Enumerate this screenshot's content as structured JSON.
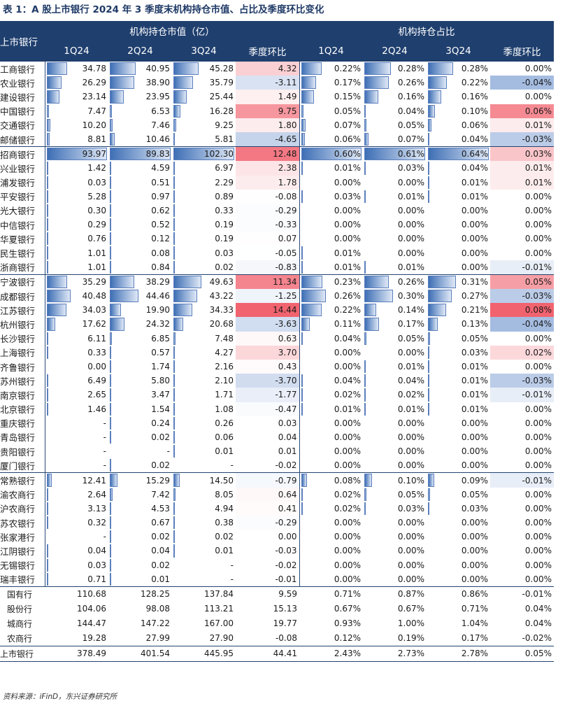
{
  "title": "表 1：A 股上市银行 2024 年 3 季度末机构持仓市值、占比及季度环比变化",
  "source": "资料来源：iFinD，东兴证券研究所",
  "header": {
    "row_label": "上市银行",
    "group_value": "机构持仓市值（亿）",
    "group_ratio": "机构持仓占比",
    "cols": [
      "1Q24",
      "2Q24",
      "3Q24",
      "季度环比",
      "1Q24",
      "2Q24",
      "3Q24",
      "季度环比"
    ]
  },
  "colors": {
    "header_bg": "#1f3f6e",
    "bar": "#3e6fb5",
    "neg": "#4a78c2",
    "pos": "#f1636f"
  },
  "rows": [
    {
      "name": "工商银行",
      "mv": [
        "34.78",
        "40.95",
        "45.28",
        "4.32"
      ],
      "r": [
        "0.22%",
        "0.28%",
        "0.28%",
        "0.00%"
      ]
    },
    {
      "name": "农业银行",
      "mv": [
        "26.29",
        "38.90",
        "35.79",
        "-3.11"
      ],
      "r": [
        "0.17%",
        "0.26%",
        "0.22%",
        "-0.04%"
      ]
    },
    {
      "name": "建设银行",
      "mv": [
        "23.14",
        "23.95",
        "25.44",
        "1.49"
      ],
      "r": [
        "0.15%",
        "0.16%",
        "0.16%",
        "0.00%"
      ]
    },
    {
      "name": "中国银行",
      "mv": [
        "7.47",
        "6.53",
        "16.28",
        "9.75"
      ],
      "r": [
        "0.05%",
        "0.04%",
        "0.10%",
        "0.06%"
      ]
    },
    {
      "name": "交通银行",
      "mv": [
        "10.20",
        "7.46",
        "9.25",
        "1.80"
      ],
      "r": [
        "0.07%",
        "0.05%",
        "0.06%",
        "0.01%"
      ]
    },
    {
      "name": "邮储银行",
      "mv": [
        "8.81",
        "10.46",
        "5.81",
        "-4.65"
      ],
      "r": [
        "0.06%",
        "0.07%",
        "0.04%",
        "-0.03%"
      ]
    },
    {
      "name": "招商银行",
      "mv": [
        "93.97",
        "89.83",
        "102.30",
        "12.48"
      ],
      "r": [
        "0.60%",
        "0.61%",
        "0.64%",
        "0.03%"
      ],
      "group": true
    },
    {
      "name": "兴业银行",
      "mv": [
        "1.42",
        "4.59",
        "6.97",
        "2.38"
      ],
      "r": [
        "0.01%",
        "0.03%",
        "0.04%",
        "0.01%"
      ]
    },
    {
      "name": "浦发银行",
      "mv": [
        "0.03",
        "0.51",
        "2.29",
        "1.78"
      ],
      "r": [
        "0.00%",
        "0.00%",
        "0.01%",
        "0.01%"
      ]
    },
    {
      "name": "平安银行",
      "mv": [
        "5.28",
        "0.97",
        "0.89",
        "-0.08"
      ],
      "r": [
        "0.03%",
        "0.01%",
        "0.01%",
        "0.00%"
      ]
    },
    {
      "name": "光大银行",
      "mv": [
        "0.30",
        "0.62",
        "0.33",
        "-0.29"
      ],
      "r": [
        "0.00%",
        "0.00%",
        "0.00%",
        "0.00%"
      ]
    },
    {
      "name": "中信银行",
      "mv": [
        "0.29",
        "0.52",
        "0.19",
        "-0.33"
      ],
      "r": [
        "0.00%",
        "0.00%",
        "0.00%",
        "0.00%"
      ]
    },
    {
      "name": "华夏银行",
      "mv": [
        "0.76",
        "0.12",
        "0.19",
        "0.07"
      ],
      "r": [
        "0.00%",
        "0.00%",
        "0.00%",
        "0.00%"
      ]
    },
    {
      "name": "民生银行",
      "mv": [
        "1.01",
        "0.08",
        "0.03",
        "-0.05"
      ],
      "r": [
        "0.01%",
        "0.00%",
        "0.00%",
        "0.00%"
      ]
    },
    {
      "name": "浙商银行",
      "mv": [
        "1.01",
        "0.84",
        "0.02",
        "-0.83"
      ],
      "r": [
        "0.01%",
        "0.01%",
        "0.00%",
        "-0.01%"
      ]
    },
    {
      "name": "宁波银行",
      "mv": [
        "35.29",
        "38.29",
        "49.63",
        "11.34"
      ],
      "r": [
        "0.23%",
        "0.26%",
        "0.31%",
        "0.05%"
      ],
      "group": true
    },
    {
      "name": "成都银行",
      "mv": [
        "40.48",
        "44.46",
        "43.22",
        "-1.25"
      ],
      "r": [
        "0.26%",
        "0.30%",
        "0.27%",
        "-0.03%"
      ]
    },
    {
      "name": "江苏银行",
      "mv": [
        "34.03",
        "19.90",
        "34.33",
        "14.44"
      ],
      "r": [
        "0.22%",
        "0.14%",
        "0.21%",
        "0.08%"
      ]
    },
    {
      "name": "杭州银行",
      "mv": [
        "17.62",
        "24.32",
        "20.68",
        "-3.63"
      ],
      "r": [
        "0.11%",
        "0.17%",
        "0.13%",
        "-0.04%"
      ]
    },
    {
      "name": "长沙银行",
      "mv": [
        "6.11",
        "6.85",
        "7.48",
        "0.63"
      ],
      "r": [
        "0.04%",
        "0.05%",
        "0.05%",
        "0.00%"
      ]
    },
    {
      "name": "上海银行",
      "mv": [
        "0.33",
        "0.57",
        "4.27",
        "3.70"
      ],
      "r": [
        "0.00%",
        "0.00%",
        "0.03%",
        "0.02%"
      ]
    },
    {
      "name": "齐鲁银行",
      "mv": [
        "0.00",
        "1.74",
        "2.16",
        "0.43"
      ],
      "r": [
        "0.00%",
        "0.01%",
        "0.01%",
        "0.00%"
      ]
    },
    {
      "name": "苏州银行",
      "mv": [
        "6.49",
        "5.80",
        "2.10",
        "-3.70"
      ],
      "r": [
        "0.04%",
        "0.04%",
        "0.01%",
        "-0.03%"
      ]
    },
    {
      "name": "南京银行",
      "mv": [
        "2.65",
        "3.47",
        "1.71",
        "-1.77"
      ],
      "r": [
        "0.02%",
        "0.02%",
        "0.01%",
        "-0.01%"
      ]
    },
    {
      "name": "北京银行",
      "mv": [
        "1.46",
        "1.54",
        "1.08",
        "-0.47"
      ],
      "r": [
        "0.01%",
        "0.01%",
        "0.01%",
        "0.00%"
      ]
    },
    {
      "name": "重庆银行",
      "mv": [
        "-",
        "0.24",
        "0.26",
        "0.03"
      ],
      "r": [
        "0.00%",
        "0.00%",
        "0.00%",
        "0.00%"
      ]
    },
    {
      "name": "青岛银行",
      "mv": [
        "-",
        "0.02",
        "0.06",
        "0.04"
      ],
      "r": [
        "0.00%",
        "0.00%",
        "0.00%",
        "0.00%"
      ]
    },
    {
      "name": "贵阳银行",
      "mv": [
        "-",
        "-",
        "0.01",
        "0.01"
      ],
      "r": [
        "0.00%",
        "0.00%",
        "0.00%",
        "0.00%"
      ]
    },
    {
      "name": "厦门银行",
      "mv": [
        "-",
        "0.02",
        "-",
        "-0.02"
      ],
      "r": [
        "0.00%",
        "0.00%",
        "0.00%",
        "0.00%"
      ]
    },
    {
      "name": "常熟银行",
      "mv": [
        "12.41",
        "15.29",
        "14.50",
        "-0.79"
      ],
      "r": [
        "0.08%",
        "0.10%",
        "0.09%",
        "-0.01%"
      ],
      "group": true
    },
    {
      "name": "渝农商行",
      "mv": [
        "2.64",
        "7.42",
        "8.05",
        "0.64"
      ],
      "r": [
        "0.02%",
        "0.05%",
        "0.05%",
        "0.00%"
      ]
    },
    {
      "name": "沪农商行",
      "mv": [
        "3.13",
        "4.53",
        "4.94",
        "0.41"
      ],
      "r": [
        "0.02%",
        "0.03%",
        "0.03%",
        "0.00%"
      ]
    },
    {
      "name": "苏农银行",
      "mv": [
        "0.32",
        "0.67",
        "0.38",
        "-0.29"
      ],
      "r": [
        "0.00%",
        "0.00%",
        "0.00%",
        "0.00%"
      ]
    },
    {
      "name": "张家港行",
      "mv": [
        "-",
        "0.02",
        "0.02",
        "0.00"
      ],
      "r": [
        "0.00%",
        "0.00%",
        "0.00%",
        "0.00%"
      ]
    },
    {
      "name": "江阴银行",
      "mv": [
        "0.04",
        "0.04",
        "0.01",
        "-0.03"
      ],
      "r": [
        "0.00%",
        "0.00%",
        "0.00%",
        "0.00%"
      ]
    },
    {
      "name": "无锡银行",
      "mv": [
        "0.03",
        "0.02",
        "-",
        "-0.02"
      ],
      "r": [
        "0.00%",
        "0.00%",
        "0.00%",
        "0.00%"
      ]
    },
    {
      "name": "瑞丰银行",
      "mv": [
        "0.71",
        "0.01",
        "-",
        "-0.01"
      ],
      "r": [
        "0.00%",
        "0.00%",
        "0.00%",
        "0.00%"
      ]
    }
  ],
  "summary": [
    {
      "name": "国有行",
      "mv": [
        "110.68",
        "128.25",
        "137.84",
        "9.59"
      ],
      "r": [
        "0.71%",
        "0.87%",
        "0.86%",
        "-0.01%"
      ]
    },
    {
      "name": "股份行",
      "mv": [
        "104.06",
        "98.08",
        "113.21",
        "15.13"
      ],
      "r": [
        "0.67%",
        "0.67%",
        "0.71%",
        "0.04%"
      ]
    },
    {
      "name": "城商行",
      "mv": [
        "144.47",
        "147.22",
        "167.00",
        "19.77"
      ],
      "r": [
        "0.93%",
        "1.00%",
        "1.04%",
        "0.04%"
      ]
    },
    {
      "name": "农商行",
      "mv": [
        "19.28",
        "27.99",
        "27.90",
        "-0.08"
      ],
      "r": [
        "0.12%",
        "0.19%",
        "0.17%",
        "-0.02%"
      ]
    },
    {
      "name": "上市银行",
      "mv": [
        "378.49",
        "401.54",
        "445.95",
        "44.41"
      ],
      "r": [
        "2.43%",
        "2.73%",
        "2.78%",
        "0.05%"
      ]
    }
  ]
}
